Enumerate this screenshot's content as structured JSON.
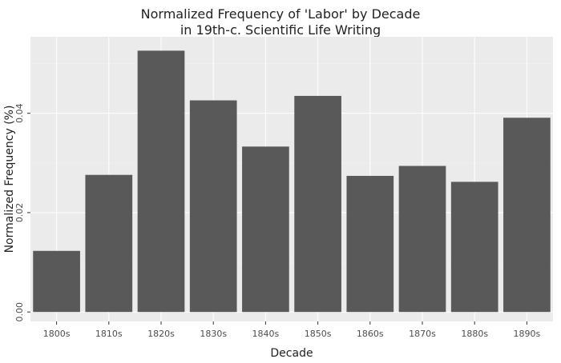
{
  "chart_data": {
    "type": "bar",
    "title": "Normalized Frequency of 'Labor' by Decade\nin 19th-c. Scientific Life Writing",
    "xlabel": "Decade",
    "ylabel": "Normalized Frequency (%)",
    "categories": [
      "1800s",
      "1810s",
      "1820s",
      "1830s",
      "1840s",
      "1850s",
      "1860s",
      "1870s",
      "1880s",
      "1890s"
    ],
    "values": [
      0.0123,
      0.0276,
      0.0526,
      0.0426,
      0.0333,
      0.0435,
      0.0274,
      0.0294,
      0.0262,
      0.0391
    ],
    "yticks": [
      0.0,
      0.02,
      0.04
    ],
    "ytick_labels": [
      "0.00",
      "0.02",
      "0.04"
    ],
    "ylim": [
      -0.0019,
      0.0554
    ],
    "grid": true,
    "colors": {
      "bar": "#595959",
      "panel": "#ebebeb",
      "gridline": "#ffffff"
    }
  }
}
